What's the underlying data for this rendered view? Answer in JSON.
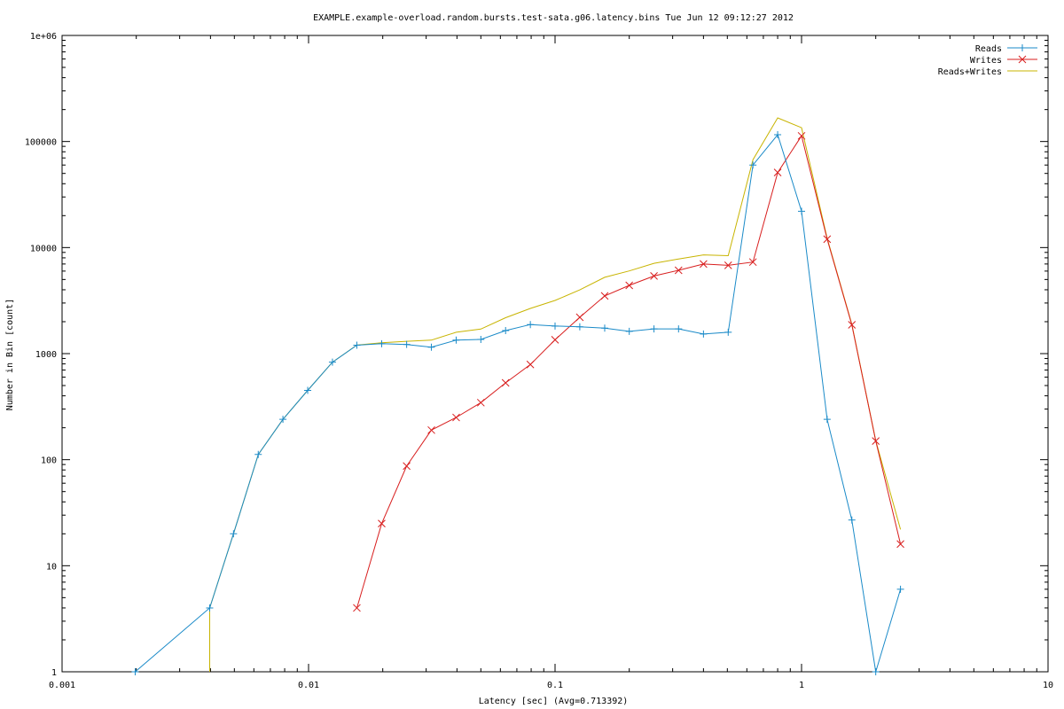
{
  "chart_data": {
    "type": "line",
    "title": "EXAMPLE.example-overload.random.bursts.test-sata.g06.latency.bins Tue Jun 12 09:12:27 2012",
    "xlabel": "Latency [sec]  (Avg=0.713392)",
    "ylabel": "Number in Bin [count]",
    "xscale": "log",
    "yscale": "log",
    "xlim": [
      0.001,
      10
    ],
    "ylim": [
      1,
      1000000
    ],
    "x_ticks": [
      {
        "value": 0.001,
        "label": "0.001"
      },
      {
        "value": 0.01,
        "label": "0.01"
      },
      {
        "value": 0.1,
        "label": "0.1"
      },
      {
        "value": 1,
        "label": "1"
      },
      {
        "value": 10,
        "label": "10"
      }
    ],
    "y_ticks": [
      {
        "value": 1,
        "label": "1"
      },
      {
        "value": 10,
        "label": "10"
      },
      {
        "value": 100,
        "label": "100"
      },
      {
        "value": 1000,
        "label": "1000"
      },
      {
        "value": 10000,
        "label": "10000"
      },
      {
        "value": 100000,
        "label": "100000"
      },
      {
        "value": 1000000,
        "label": "1e+06"
      }
    ],
    "legend_position": "top-right",
    "grid": false,
    "series": [
      {
        "name": "Reads",
        "color": "#1a8ac8",
        "marker": "plus",
        "points": [
          [
            0.00198,
            1
          ],
          [
            0.00397,
            4
          ],
          [
            0.00496,
            20
          ],
          [
            0.00625,
            112
          ],
          [
            0.00787,
            240
          ],
          [
            0.00992,
            450
          ],
          [
            0.0125,
            830
          ],
          [
            0.0157,
            1200
          ],
          [
            0.0198,
            1240
          ],
          [
            0.025,
            1220
          ],
          [
            0.0315,
            1150
          ],
          [
            0.0397,
            1340
          ],
          [
            0.05,
            1360
          ],
          [
            0.063,
            1650
          ],
          [
            0.0794,
            1880
          ],
          [
            0.1,
            1820
          ],
          [
            0.126,
            1790
          ],
          [
            0.159,
            1740
          ],
          [
            0.2,
            1620
          ],
          [
            0.252,
            1710
          ],
          [
            0.317,
            1710
          ],
          [
            0.4,
            1530
          ],
          [
            0.504,
            1590
          ],
          [
            0.635,
            60000
          ],
          [
            0.8,
            116000
          ],
          [
            1.0,
            22000
          ],
          [
            1.27,
            240
          ],
          [
            1.6,
            27
          ],
          [
            2.0,
            1
          ],
          [
            2.52,
            6
          ]
        ]
      },
      {
        "name": "Writes",
        "color": "#d81e1e",
        "marker": "cross",
        "points": [
          [
            0.0157,
            4
          ],
          [
            0.0198,
            25
          ],
          [
            0.025,
            87
          ],
          [
            0.0315,
            190
          ],
          [
            0.0397,
            250
          ],
          [
            0.05,
            345
          ],
          [
            0.063,
            530
          ],
          [
            0.0794,
            790
          ],
          [
            0.1,
            1350
          ],
          [
            0.126,
            2200
          ],
          [
            0.159,
            3500
          ],
          [
            0.2,
            4400
          ],
          [
            0.252,
            5400
          ],
          [
            0.317,
            6100
          ],
          [
            0.4,
            7000
          ],
          [
            0.504,
            6800
          ],
          [
            0.635,
            7300
          ],
          [
            0.8,
            51000
          ],
          [
            1.0,
            113000
          ],
          [
            1.27,
            12000
          ],
          [
            1.6,
            1870
          ],
          [
            2.0,
            150
          ],
          [
            2.52,
            16
          ]
        ]
      },
      {
        "name": "Reads+Writes",
        "color": "#c8b400",
        "marker": "none",
        "points": [
          [
            0.00397,
            1
          ],
          [
            0.00397,
            4
          ],
          [
            0.00496,
            20
          ],
          [
            0.00625,
            112
          ],
          [
            0.00787,
            240
          ],
          [
            0.00992,
            450
          ],
          [
            0.0125,
            830
          ],
          [
            0.0157,
            1204
          ],
          [
            0.0198,
            1265
          ],
          [
            0.025,
            1307
          ],
          [
            0.0315,
            1340
          ],
          [
            0.0397,
            1590
          ],
          [
            0.05,
            1705
          ],
          [
            0.063,
            2180
          ],
          [
            0.0794,
            2670
          ],
          [
            0.1,
            3170
          ],
          [
            0.126,
            3990
          ],
          [
            0.159,
            5240
          ],
          [
            0.2,
            6020
          ],
          [
            0.252,
            7110
          ],
          [
            0.317,
            7810
          ],
          [
            0.4,
            8530
          ],
          [
            0.504,
            8390
          ],
          [
            0.635,
            67300
          ],
          [
            0.8,
            167000
          ],
          [
            1.0,
            135000
          ],
          [
            1.27,
            12240
          ],
          [
            1.6,
            1897
          ],
          [
            2.0,
            151
          ],
          [
            2.52,
            22
          ]
        ]
      }
    ]
  }
}
